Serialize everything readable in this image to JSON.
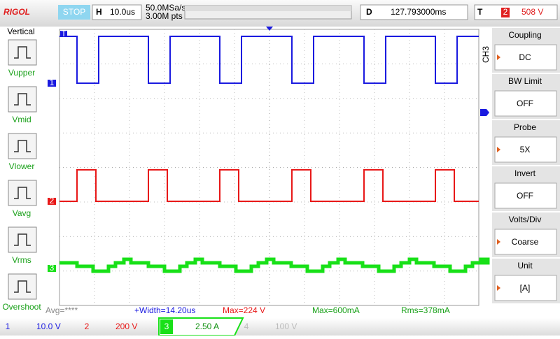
{
  "header": {
    "brand": "RIGOL",
    "status": "STOP",
    "timebase_label": "H",
    "timebase": "10.0us",
    "sample_rate": "50.0MSa/s",
    "memory_depth": "3.00M pts",
    "delay_label": "D",
    "delay": "127.793000ms",
    "trigger_label": "T",
    "trigger_source": "2",
    "trigger_level": "508 V"
  },
  "left_menu": {
    "title": "Vertical",
    "items": [
      "Vupper",
      "Vmid",
      "Vlower",
      "Vavg",
      "Vrms",
      "Overshoot"
    ]
  },
  "right_menu": {
    "channel": "CH3",
    "items": [
      {
        "label": "Coupling",
        "value": "DC"
      },
      {
        "label": "BW Limit",
        "value": "OFF"
      },
      {
        "label": "Probe",
        "value": "5X"
      },
      {
        "label": "Invert",
        "value": "OFF"
      },
      {
        "label": "Volts/Div",
        "value": "Coarse"
      },
      {
        "label": "Unit",
        "value": "[A]"
      }
    ]
  },
  "measurements": [
    "Avg=****",
    "+Width=14.20us",
    "Max=224 V",
    "Max=600mA",
    "Rms=378mA"
  ],
  "channels": [
    {
      "number": "1",
      "scale": "10.0 V"
    },
    {
      "number": "2",
      "scale": "200 V"
    },
    {
      "number": "3",
      "scale": "2.50 A"
    },
    {
      "number": "4",
      "scale": "100 V"
    }
  ],
  "trigger_marker": "T"
}
